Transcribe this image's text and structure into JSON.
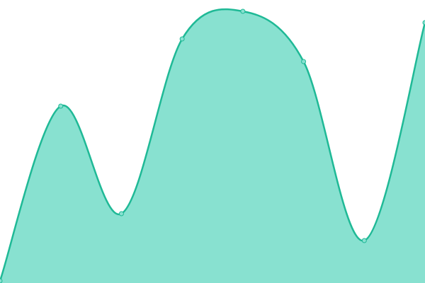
{
  "chart_data": {
    "type": "area",
    "values": [
      3,
      250,
      98,
      345,
      384,
      313,
      60,
      368
    ],
    "ylim": [
      0,
      400
    ],
    "color": "#1fb996",
    "area_color": "#88e1d0"
  }
}
